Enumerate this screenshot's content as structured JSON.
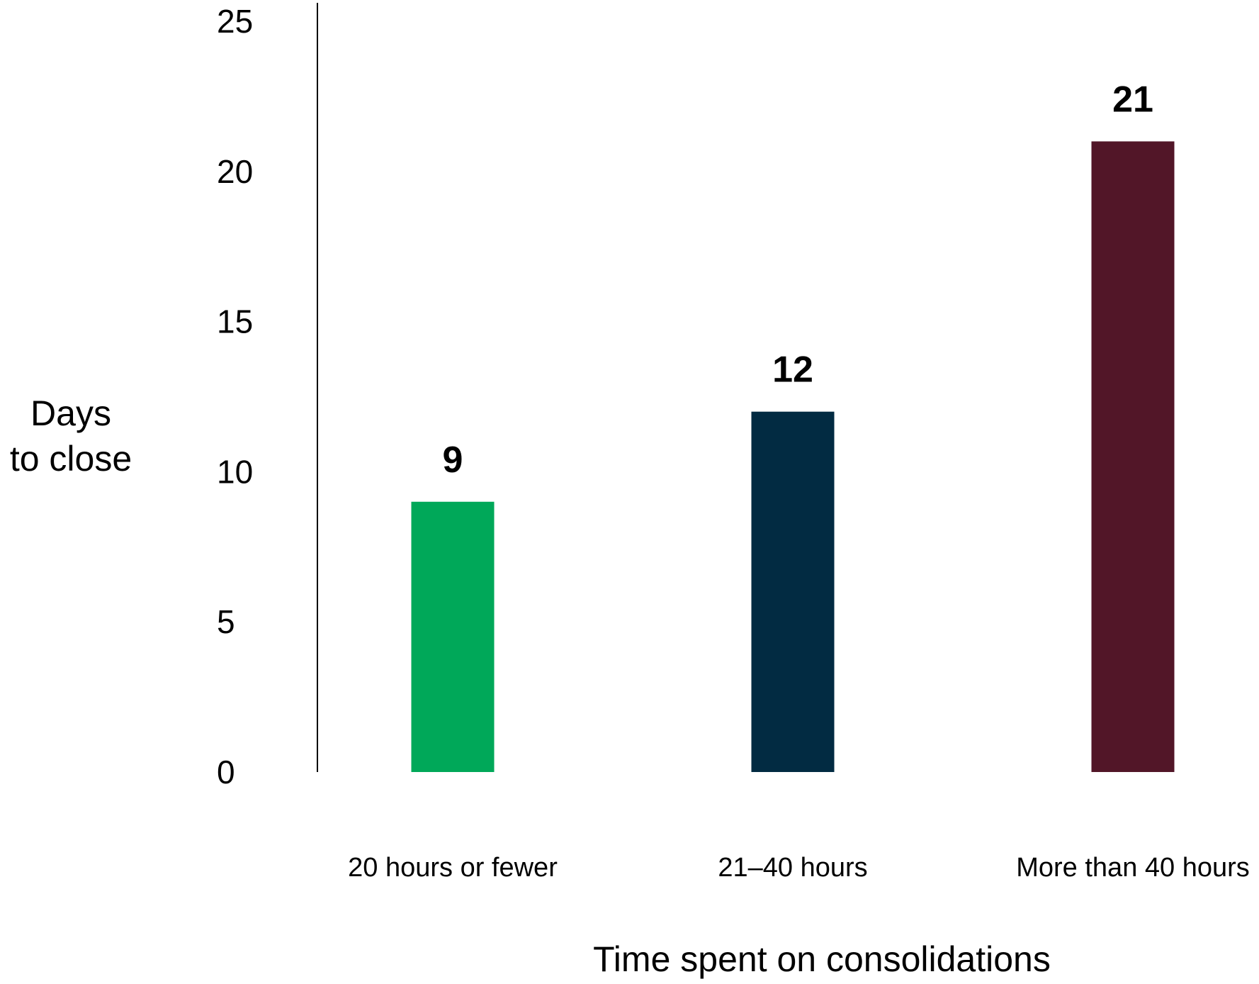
{
  "chart_data": {
    "type": "bar",
    "categories": [
      "20 hours or fewer",
      "21–40 hours",
      "More than 40 hours"
    ],
    "values": [
      9,
      12,
      21
    ],
    "colors": [
      "#00A859",
      "#022B42",
      "#521628"
    ],
    "data_labels": [
      "9",
      "12",
      "21"
    ],
    "ylabel_lines": [
      "Days",
      "to close"
    ],
    "xlabel": "Time spent on consolidations",
    "ylim": [
      0,
      25
    ],
    "yticks": [
      0,
      5,
      10,
      15,
      20,
      25
    ],
    "grid": false,
    "legend": "none"
  }
}
